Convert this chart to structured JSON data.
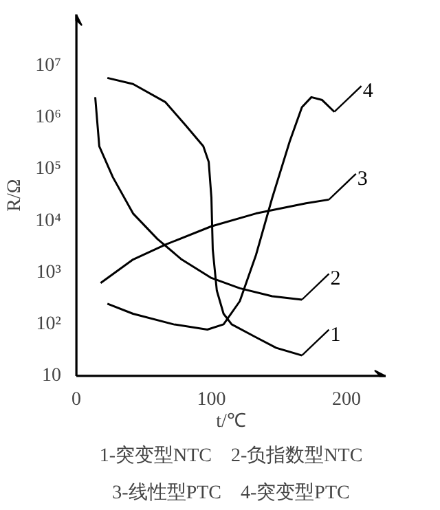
{
  "chart_data": {
    "type": "line",
    "xlabel": "t/℃",
    "ylabel": "R/Ω",
    "log": "y",
    "grid": false,
    "legend": "right",
    "xlim": [
      0,
      229
    ],
    "xticks": [
      0,
      100,
      200
    ],
    "ylim": [
      10,
      100000000
    ],
    "yticks": [
      {
        "value": 10,
        "label": "10"
      },
      {
        "value": 100,
        "label": "10²"
      },
      {
        "value": 1000,
        "label": "10³"
      },
      {
        "value": 10000,
        "label": "10⁴"
      },
      {
        "value": 100000,
        "label": "10⁵"
      },
      {
        "value": 1000000,
        "label": "10⁶"
      },
      {
        "value": 10000000,
        "label": "10⁷"
      }
    ],
    "series": [
      {
        "name": "1",
        "color": "#000000",
        "x": [
          23,
          42,
          66,
          81,
          94,
          98,
          100,
          101,
          104,
          109,
          115,
          133,
          148,
          167
        ],
        "values": [
          5900000,
          4500000,
          2000000,
          710000,
          280000,
          140000,
          28000,
          2800,
          450,
          160,
          100,
          56,
          35,
          25
        ]
      },
      {
        "name": "2",
        "color": "#000000",
        "x": [
          14,
          17,
          27,
          42,
          60,
          78,
          100,
          121,
          145,
          167
        ],
        "values": [
          2500000,
          280000,
          71000,
          14000,
          4500,
          1800,
          790,
          500,
          350,
          300
        ]
      },
      {
        "name": "3",
        "color": "#000000",
        "x": [
          18,
          42,
          66,
          100,
          133,
          170,
          187
        ],
        "values": [
          630,
          1800,
          3500,
          7900,
          14000,
          22000,
          26000
        ]
      },
      {
        "name": "4",
        "color": "#000000",
        "x": [
          23,
          42,
          72,
          97,
          109,
          121,
          133,
          145,
          158,
          167,
          174,
          182,
          191
        ],
        "values": [
          250,
          160,
          100,
          79,
          100,
          280,
          2200,
          28000,
          350000,
          1600000,
          2500000,
          2200000,
          1300000
        ]
      }
    ],
    "annotations": [
      "1-突变型NTC　2-负指数型NTC",
      "3-线性型PTC　4-突变型PTC"
    ]
  }
}
